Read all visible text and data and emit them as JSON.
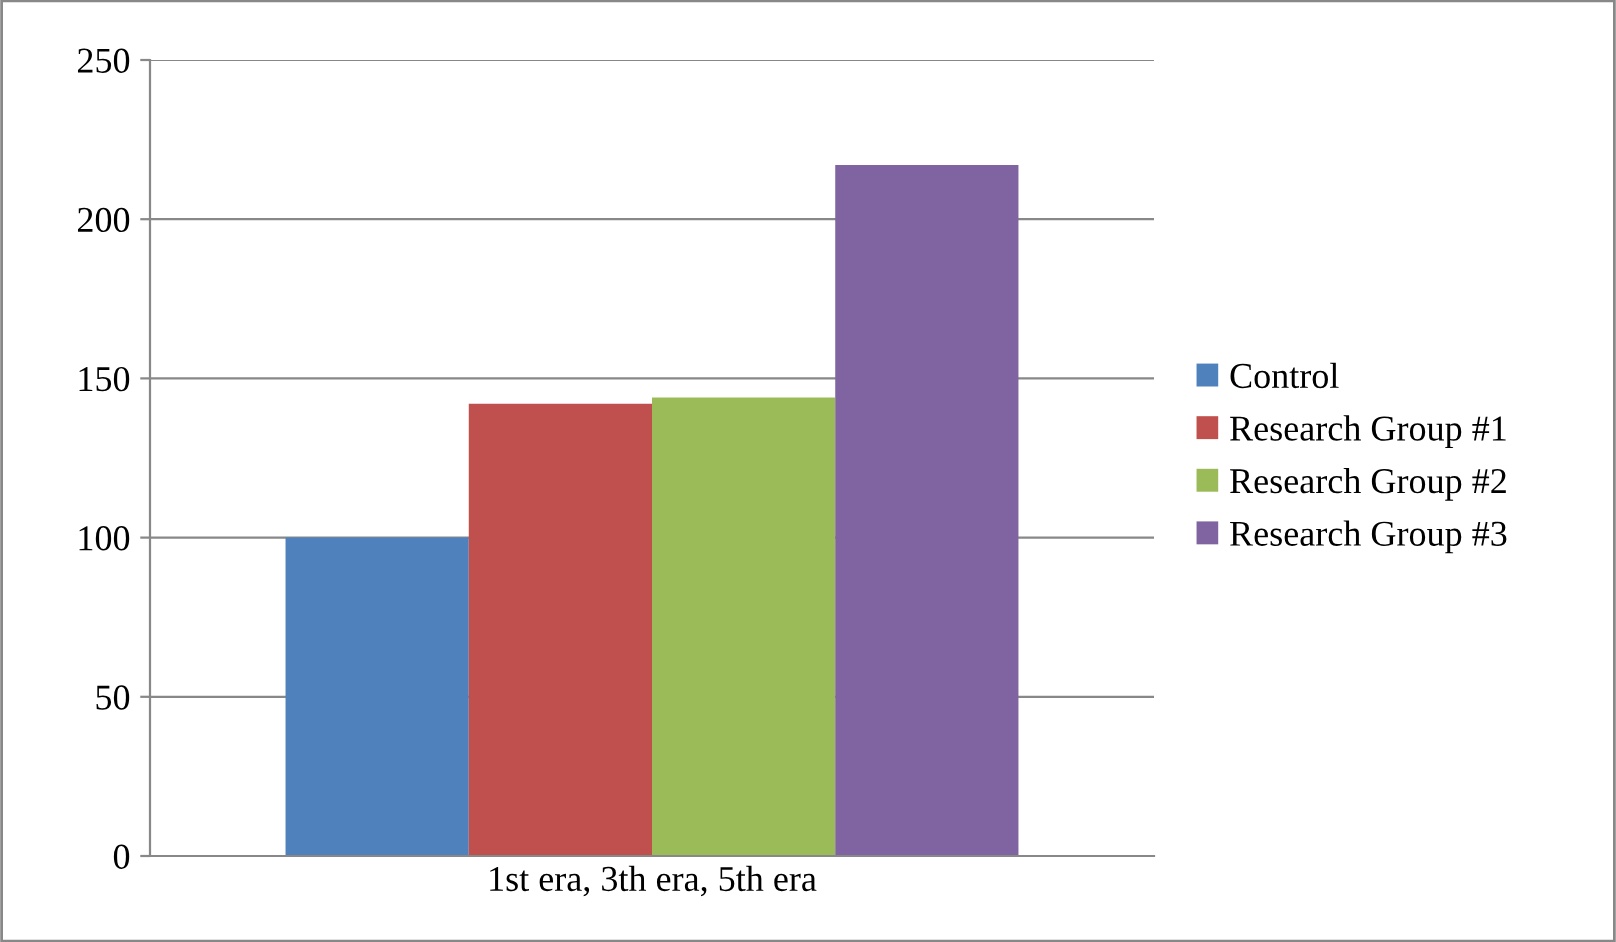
{
  "chart_data": {
    "type": "bar",
    "categories": [
      "1st era, 3th era, 5th era"
    ],
    "series": [
      {
        "name": "Control",
        "color": "#4f81bd",
        "values": [
          100
        ]
      },
      {
        "name": "Research Group #1",
        "color": "#c0504d",
        "values": [
          142
        ]
      },
      {
        "name": "Research Group #2",
        "color": "#9bbb59",
        "values": [
          144
        ]
      },
      {
        "name": "Research Group #3",
        "color": "#8064a2",
        "values": [
          217
        ]
      }
    ],
    "ylim": [
      0,
      250
    ],
    "yticks": [
      0,
      50,
      100,
      150,
      200,
      250
    ],
    "grid": "y",
    "legend": "right"
  }
}
